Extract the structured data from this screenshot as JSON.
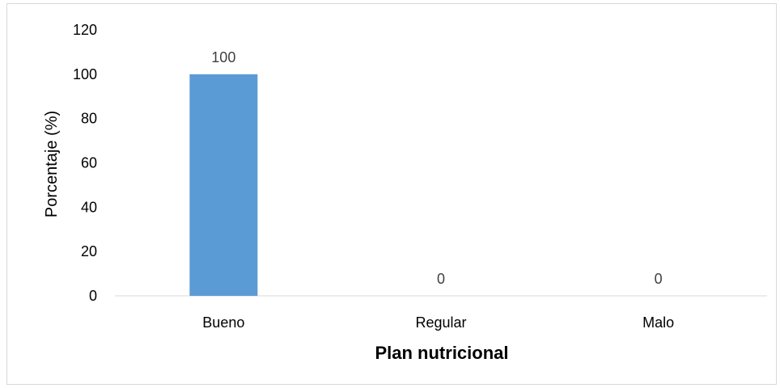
{
  "chart_data": {
    "type": "bar",
    "categories": [
      "Bueno",
      "Regular",
      "Malo"
    ],
    "values": [
      100,
      0,
      0
    ],
    "data_labels": [
      "100",
      "0",
      "0"
    ],
    "title": "",
    "xlabel": "Plan nutricional",
    "ylabel": "Porcentaje (%)",
    "ylim": [
      0,
      120
    ],
    "yticks": [
      0,
      20,
      40,
      60,
      80,
      100,
      120
    ],
    "grid": false,
    "legend": "none",
    "bar_color": "#5b9bd5"
  }
}
